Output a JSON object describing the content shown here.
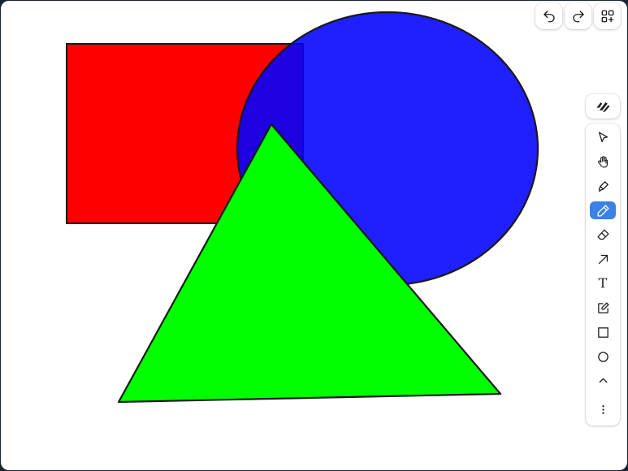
{
  "canvas": {
    "shapes": [
      {
        "name": "rectangle",
        "fill": "#ff0000",
        "stroke": "#1a1a1a"
      },
      {
        "name": "ellipse",
        "fill": "#0000ff",
        "stroke": "#1a1a1a"
      },
      {
        "name": "triangle",
        "fill": "#00ff00",
        "stroke": "#1a1a1a"
      }
    ]
  },
  "top_toolbar": {
    "items": [
      {
        "name": "undo",
        "icon": "undo-icon"
      },
      {
        "name": "redo",
        "icon": "redo-icon"
      },
      {
        "name": "add-apps",
        "icon": "apps-plus-icon"
      }
    ]
  },
  "side_toolbar": {
    "active_tool": "pencil",
    "active_color": "#3b82e6",
    "text_tool_glyph": "T",
    "tools": [
      {
        "name": "select",
        "icon": "cursor-arrow-icon"
      },
      {
        "name": "hand",
        "icon": "hand-icon"
      },
      {
        "name": "highlighter",
        "icon": "highlighter-icon"
      },
      {
        "name": "pencil",
        "icon": "pencil-icon"
      },
      {
        "name": "eraser",
        "icon": "eraser-icon"
      },
      {
        "name": "arrow",
        "icon": "arrow-icon"
      },
      {
        "name": "text",
        "icon": "text-icon"
      },
      {
        "name": "note",
        "icon": "note-edit-icon"
      },
      {
        "name": "rectangle",
        "icon": "square-icon"
      },
      {
        "name": "ellipse",
        "icon": "circle-icon"
      },
      {
        "name": "collapse",
        "icon": "chevron-up-icon"
      },
      {
        "name": "more",
        "icon": "more-vertical-icon"
      }
    ]
  }
}
